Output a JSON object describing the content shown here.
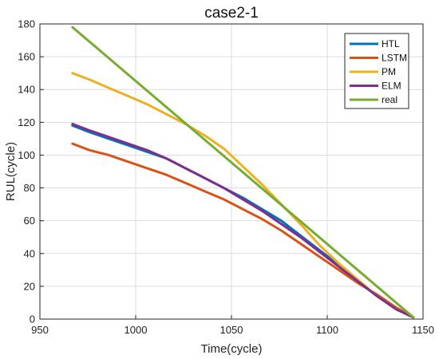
{
  "chart_data": {
    "type": "line",
    "title": "case2-1",
    "xlabel": "Time(cycle)",
    "ylabel": "RUL(cycle)",
    "xlim": [
      950,
      1150
    ],
    "ylim": [
      0,
      180
    ],
    "xticks": [
      950,
      1000,
      1050,
      1100,
      1150
    ],
    "yticks": [
      0,
      20,
      40,
      60,
      80,
      100,
      120,
      140,
      160,
      180
    ],
    "grid": true,
    "legend_position": "top-right",
    "series": [
      {
        "name": "HTL",
        "color": "#0072BD",
        "points": [
          [
            967,
            118
          ],
          [
            976,
            114
          ],
          [
            986,
            110
          ],
          [
            996,
            106
          ],
          [
            1006,
            102
          ],
          [
            1016,
            98
          ],
          [
            1026,
            92
          ],
          [
            1036,
            86
          ],
          [
            1046,
            80
          ],
          [
            1056,
            74
          ],
          [
            1066,
            67
          ],
          [
            1076,
            60
          ],
          [
            1086,
            51
          ],
          [
            1096,
            42
          ],
          [
            1106,
            33
          ],
          [
            1116,
            23
          ],
          [
            1126,
            14
          ],
          [
            1136,
            6
          ],
          [
            1145,
            1
          ]
        ]
      },
      {
        "name": "LSTM",
        "color": "#D95319",
        "points": [
          [
            967,
            107
          ],
          [
            976,
            103
          ],
          [
            986,
            100
          ],
          [
            996,
            96
          ],
          [
            1006,
            92
          ],
          [
            1016,
            88
          ],
          [
            1026,
            83
          ],
          [
            1036,
            78
          ],
          [
            1046,
            73
          ],
          [
            1056,
            67
          ],
          [
            1066,
            61
          ],
          [
            1076,
            54
          ],
          [
            1086,
            46
          ],
          [
            1096,
            38
          ],
          [
            1106,
            30
          ],
          [
            1116,
            22
          ],
          [
            1126,
            15
          ],
          [
            1136,
            7
          ],
          [
            1145,
            1
          ]
        ]
      },
      {
        "name": "PM",
        "color": "#EDB120",
        "points": [
          [
            967,
            150
          ],
          [
            976,
            146
          ],
          [
            986,
            141
          ],
          [
            996,
            136
          ],
          [
            1006,
            131
          ],
          [
            1016,
            125
          ],
          [
            1026,
            119
          ],
          [
            1036,
            112
          ],
          [
            1046,
            104
          ],
          [
            1056,
            93
          ],
          [
            1066,
            82
          ],
          [
            1076,
            70
          ],
          [
            1086,
            58
          ],
          [
            1096,
            45
          ],
          [
            1106,
            34
          ],
          [
            1116,
            24
          ],
          [
            1126,
            14
          ],
          [
            1136,
            6
          ],
          [
            1145,
            1
          ]
        ]
      },
      {
        "name": "ELM",
        "color": "#7E2F8E",
        "points": [
          [
            967,
            119
          ],
          [
            976,
            115
          ],
          [
            986,
            111
          ],
          [
            996,
            107
          ],
          [
            1006,
            103
          ],
          [
            1016,
            98
          ],
          [
            1026,
            92
          ],
          [
            1036,
            86
          ],
          [
            1046,
            80
          ],
          [
            1056,
            73
          ],
          [
            1066,
            66
          ],
          [
            1076,
            58
          ],
          [
            1086,
            50
          ],
          [
            1096,
            41
          ],
          [
            1106,
            32
          ],
          [
            1116,
            23
          ],
          [
            1126,
            14
          ],
          [
            1136,
            6
          ],
          [
            1145,
            1
          ]
        ]
      },
      {
        "name": "real",
        "color": "#77AC30",
        "points": [
          [
            967,
            178
          ],
          [
            1145,
            1
          ]
        ]
      }
    ]
  }
}
